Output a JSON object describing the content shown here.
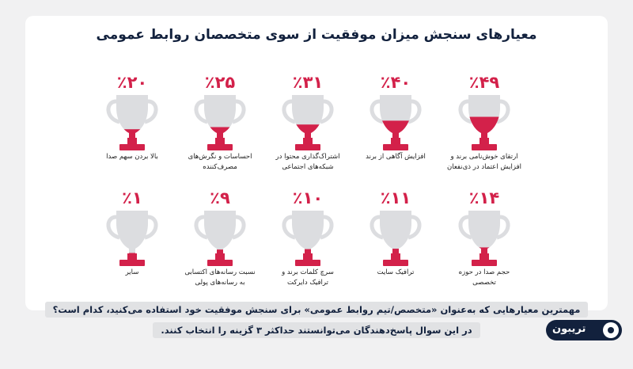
{
  "page": {
    "title": "معیارهای سنجش میزان موفقیت از سوی متخصصان روابط عمومی",
    "question": "مهمترین معیارهایی که به‌عنوان «متخصص/تیم روابط عمومی» برای سنجش موفقیت خود استفاده می‌کنید، کدام است؟",
    "note": "در این سوال پاسخ‌دهندگان می‌توانستند حداکثر ۳ گزینه را انتخاب کنند.",
    "brand": "تریبون"
  },
  "colors": {
    "accent": "#d3214a",
    "trophy": "#dcdde0",
    "title": "#12213d"
  },
  "chart_data": {
    "type": "bar",
    "unit": "%",
    "items": [
      {
        "value": 49,
        "label": "٪۴۹",
        "lines": [
          "ارتقای خوش‌نامی برند و",
          "افزایش اعتماد در ذی‌نفعان"
        ]
      },
      {
        "value": 40,
        "label": "٪۴۰",
        "lines": [
          "افزایش آگاهی از برند"
        ]
      },
      {
        "value": 31,
        "label": "٪۳۱",
        "lines": [
          "اشتراک‌گذاری محتوا در",
          "شبکه‌های اجتماعی"
        ]
      },
      {
        "value": 25,
        "label": "٪۲۵",
        "lines": [
          "احساسات و نگرش‌های",
          "مصرف‌کننده"
        ]
      },
      {
        "value": 20,
        "label": "٪۲۰",
        "lines": [
          "بالا بردن سهم صدا"
        ]
      },
      {
        "value": 14,
        "label": "٪۱۴",
        "lines": [
          "حجم صدا در حوزه",
          "تخصصی"
        ]
      },
      {
        "value": 11,
        "label": "٪۱۱",
        "lines": [
          "ترافیک سایت"
        ]
      },
      {
        "value": 10,
        "label": "٪۱۰",
        "lines": [
          "سرچ کلمات برند و",
          "ترافیک دایرکت"
        ]
      },
      {
        "value": 9,
        "label": "٪۹",
        "lines": [
          "نسبت رسانه‌های اکتسابی",
          "به رسانه‌های پولی"
        ]
      },
      {
        "value": 1,
        "label": "٪۱",
        "lines": [
          "سایر"
        ]
      }
    ]
  }
}
